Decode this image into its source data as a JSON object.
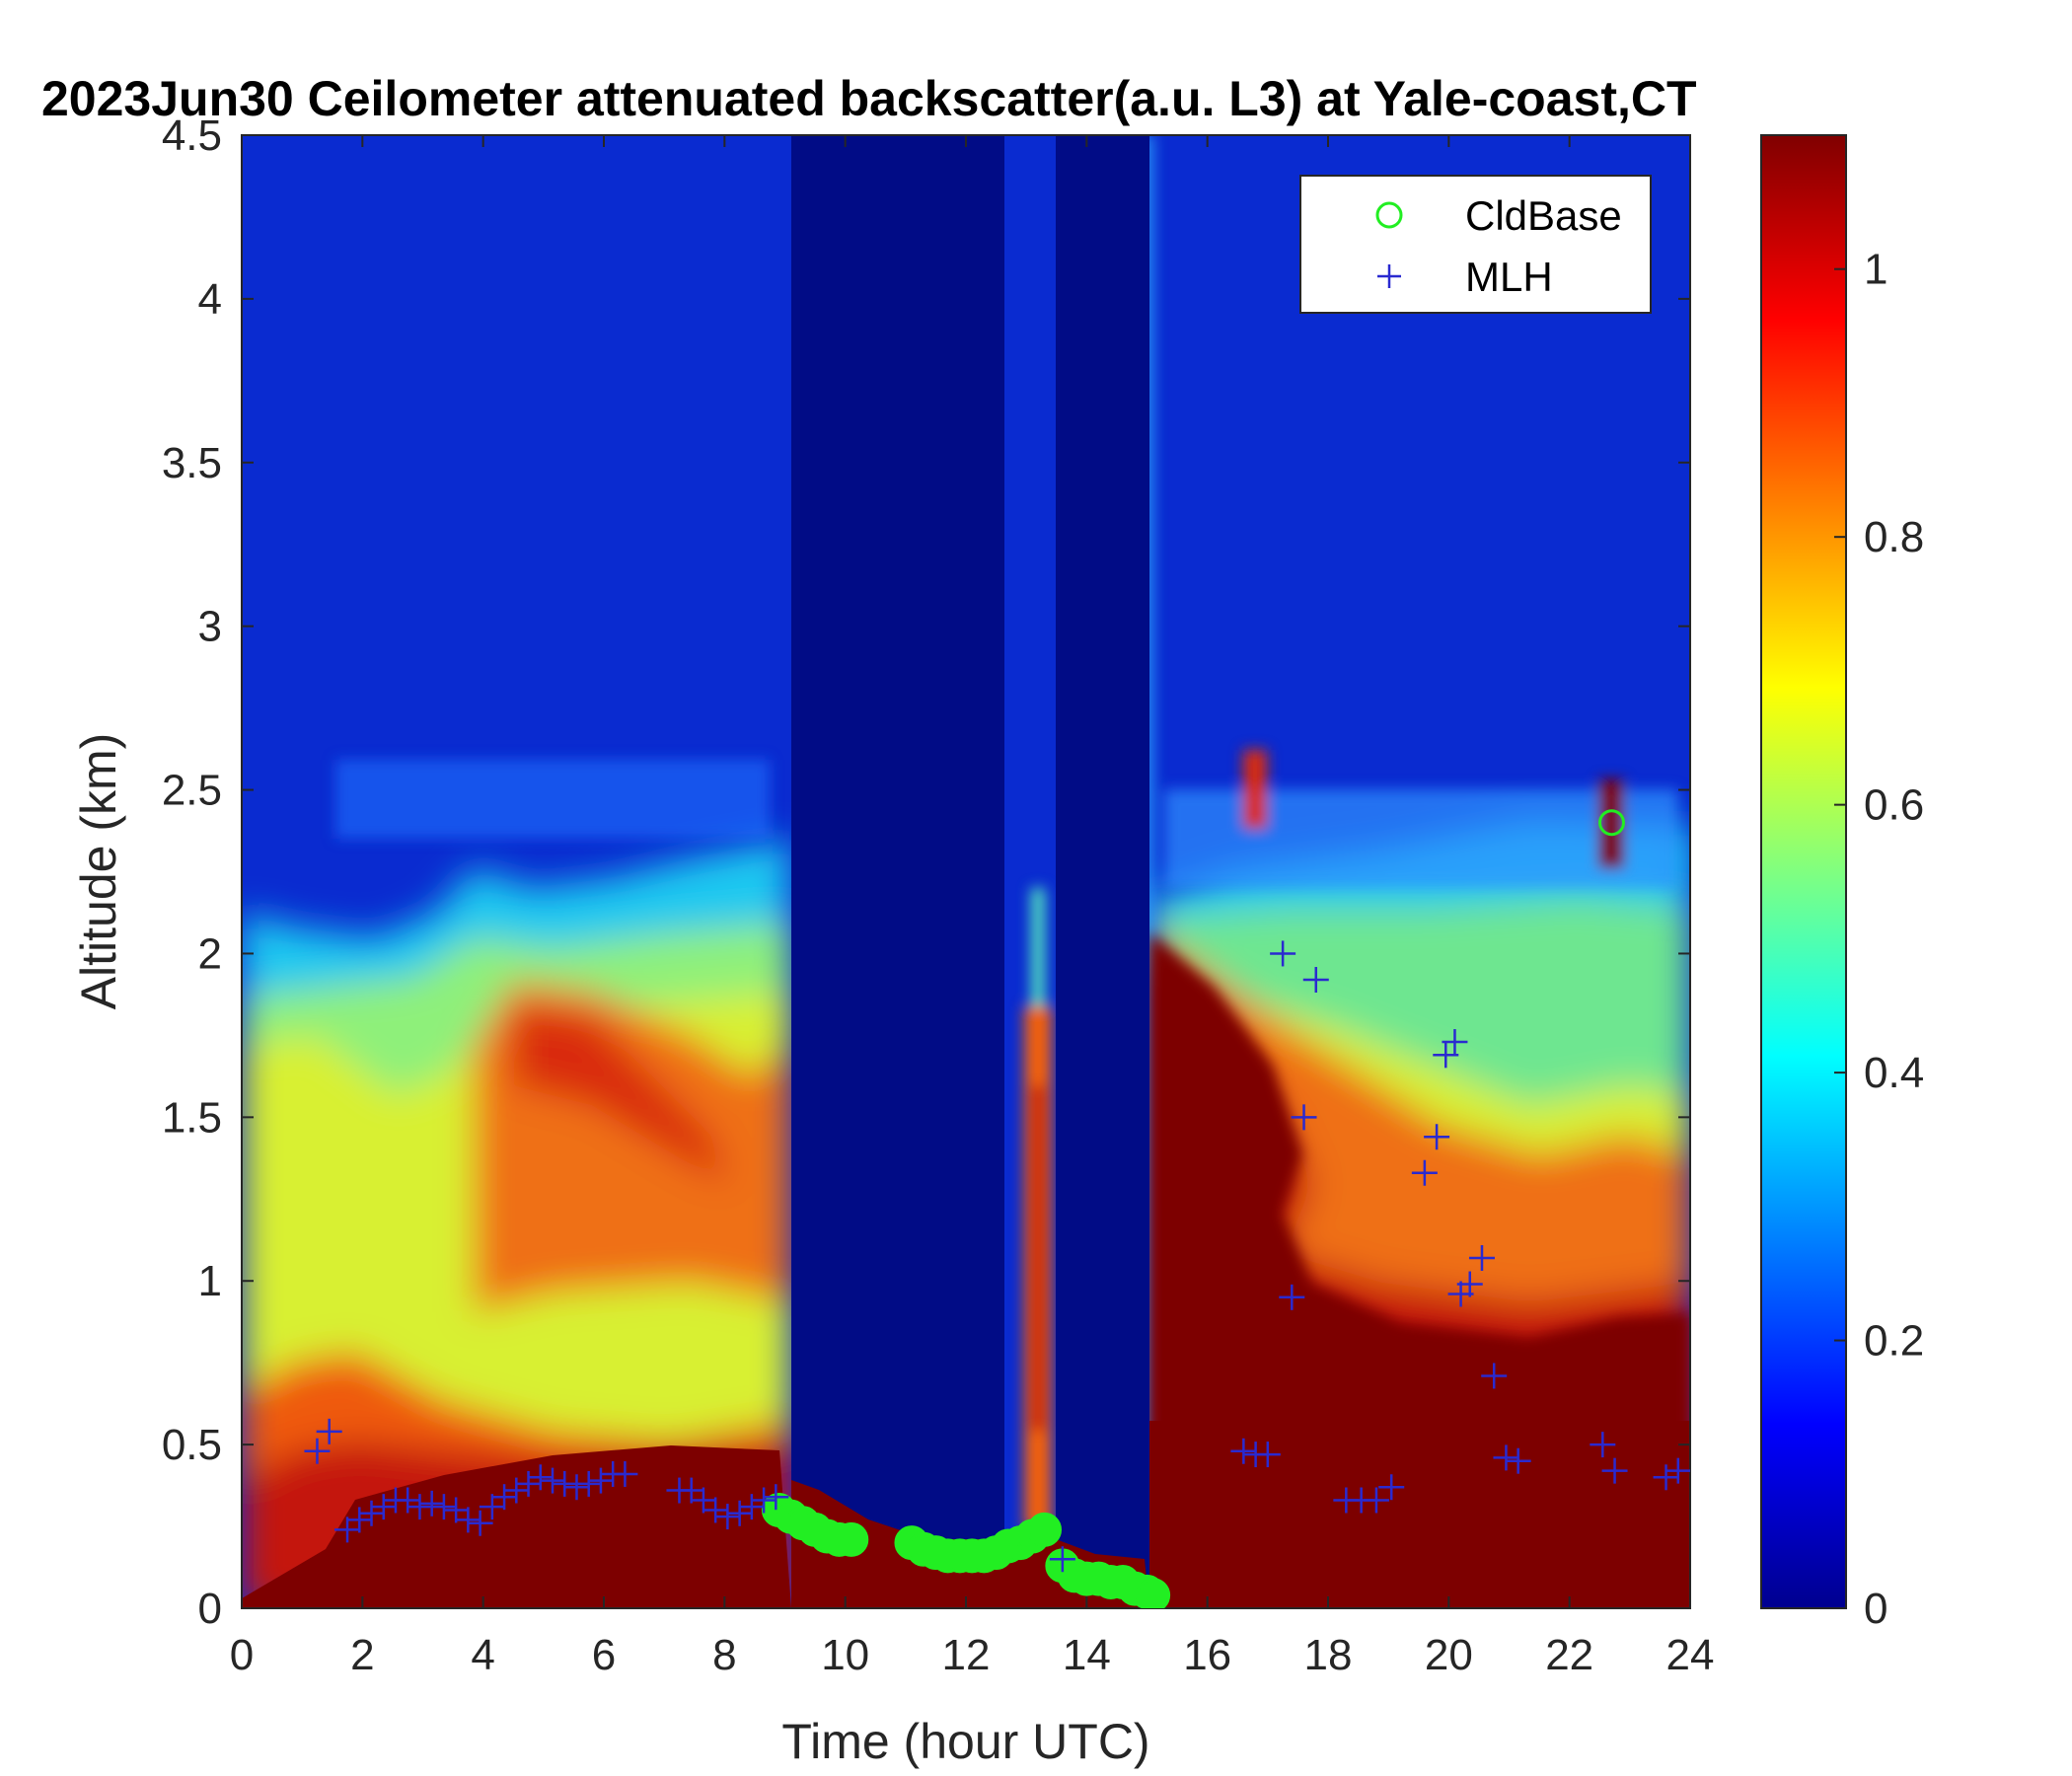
{
  "chart_data": {
    "type": "heatmap",
    "title": "2023Jun30 Ceilometer attenuated backscatter(a.u. L3) at Yale-coast,CT",
    "xlabel": "Time (hour UTC)",
    "ylabel": "Altitude (km)",
    "xlim": [
      0,
      24
    ],
    "ylim": [
      0,
      4.5
    ],
    "x_ticks": [
      0,
      2,
      4,
      6,
      8,
      10,
      12,
      14,
      16,
      18,
      20,
      22,
      24
    ],
    "y_ticks": [
      0,
      0.5,
      1,
      1.5,
      2,
      2.5,
      3,
      3.5,
      4,
      4.5
    ],
    "colorbar": {
      "colormap": "jet",
      "range": [
        0,
        1.1
      ],
      "ticks": [
        0,
        0.2,
        0.4,
        0.6,
        0.8,
        1
      ]
    },
    "legend": {
      "position": "top-right",
      "entries": [
        {
          "name": "CldBase",
          "marker": "circle",
          "color": "#22ee22"
        },
        {
          "name": "MLH",
          "marker": "plus",
          "color": "#2a2ad0"
        }
      ]
    },
    "series": [
      {
        "name": "CldBase",
        "points": [
          [
            8.9,
            0.3
          ],
          [
            9.1,
            0.28
          ],
          [
            9.3,
            0.26
          ],
          [
            9.5,
            0.24
          ],
          [
            9.7,
            0.22
          ],
          [
            9.9,
            0.21
          ],
          [
            10.1,
            0.21
          ],
          [
            11.1,
            0.2
          ],
          [
            11.3,
            0.18
          ],
          [
            11.5,
            0.17
          ],
          [
            11.7,
            0.16
          ],
          [
            11.9,
            0.16
          ],
          [
            12.1,
            0.16
          ],
          [
            12.3,
            0.16
          ],
          [
            12.5,
            0.17
          ],
          [
            12.7,
            0.19
          ],
          [
            12.9,
            0.2
          ],
          [
            13.1,
            0.22
          ],
          [
            13.3,
            0.24
          ],
          [
            13.6,
            0.13
          ],
          [
            13.8,
            0.1
          ],
          [
            14.0,
            0.09
          ],
          [
            14.2,
            0.09
          ],
          [
            14.4,
            0.08
          ],
          [
            14.6,
            0.08
          ],
          [
            14.8,
            0.06
          ],
          [
            15.0,
            0.05
          ],
          [
            15.1,
            0.04
          ],
          [
            22.7,
            2.4
          ]
        ]
      },
      {
        "name": "MLH",
        "points": [
          [
            1.25,
            0.48
          ],
          [
            1.45,
            0.54
          ],
          [
            1.75,
            0.24
          ],
          [
            1.95,
            0.27
          ],
          [
            2.15,
            0.29
          ],
          [
            2.35,
            0.31
          ],
          [
            2.55,
            0.33
          ],
          [
            2.75,
            0.33
          ],
          [
            2.95,
            0.31
          ],
          [
            3.15,
            0.32
          ],
          [
            3.35,
            0.31
          ],
          [
            3.55,
            0.3
          ],
          [
            3.75,
            0.27
          ],
          [
            3.95,
            0.26
          ],
          [
            4.15,
            0.31
          ],
          [
            4.35,
            0.34
          ],
          [
            4.55,
            0.36
          ],
          [
            4.75,
            0.38
          ],
          [
            4.95,
            0.4
          ],
          [
            5.15,
            0.39
          ],
          [
            5.35,
            0.38
          ],
          [
            5.55,
            0.37
          ],
          [
            5.75,
            0.38
          ],
          [
            5.95,
            0.39
          ],
          [
            6.15,
            0.41
          ],
          [
            6.35,
            0.41
          ],
          [
            7.25,
            0.36
          ],
          [
            7.45,
            0.36
          ],
          [
            7.65,
            0.33
          ],
          [
            7.85,
            0.3
          ],
          [
            8.05,
            0.28
          ],
          [
            8.25,
            0.29
          ],
          [
            8.45,
            0.31
          ],
          [
            8.65,
            0.33
          ],
          [
            8.85,
            0.34
          ],
          [
            13.6,
            0.15
          ],
          [
            16.6,
            0.48
          ],
          [
            16.8,
            0.47
          ],
          [
            17.0,
            0.47
          ],
          [
            17.25,
            2.0
          ],
          [
            17.4,
            0.95
          ],
          [
            17.6,
            1.5
          ],
          [
            17.8,
            1.92
          ],
          [
            18.3,
            0.33
          ],
          [
            18.55,
            0.33
          ],
          [
            18.8,
            0.33
          ],
          [
            19.05,
            0.37
          ],
          [
            19.6,
            1.33
          ],
          [
            19.8,
            1.44
          ],
          [
            19.95,
            1.69
          ],
          [
            20.1,
            1.73
          ],
          [
            20.2,
            0.96
          ],
          [
            20.35,
            0.99
          ],
          [
            20.55,
            1.07
          ],
          [
            20.75,
            0.71
          ],
          [
            20.95,
            0.46
          ],
          [
            21.15,
            0.45
          ],
          [
            22.55,
            0.5
          ],
          [
            22.75,
            0.42
          ],
          [
            23.6,
            0.4
          ],
          [
            23.8,
            0.42
          ]
        ]
      }
    ]
  }
}
